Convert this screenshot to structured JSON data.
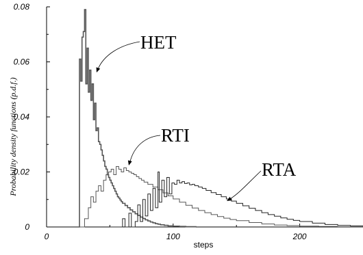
{
  "chart_data": {
    "type": "line",
    "title": "",
    "xlabel": "steps",
    "ylabel": "Probability density functions (p.d.f.)",
    "xlim": [
      0,
      250
    ],
    "ylim": [
      0,
      0.08
    ],
    "x_ticks": [
      0,
      100,
      200
    ],
    "y_ticks": [
      0,
      0.02,
      0.04,
      0.06,
      0.08
    ],
    "x_tick_labels": [
      "0",
      "100",
      "200"
    ],
    "y_tick_labels": [
      "0",
      "0.02",
      "0.04",
      "0.06",
      "0.08"
    ],
    "grid": false,
    "legend": "none",
    "series": [
      {
        "name": "HET",
        "style": "step",
        "color": "#555555",
        "stroke_width": 1.6,
        "points": [
          [
            22,
            0
          ],
          [
            26,
            0
          ],
          [
            26,
            0.061
          ],
          [
            27,
            0.053
          ],
          [
            28,
            0.069
          ],
          [
            29,
            0.071
          ],
          [
            30,
            0.079
          ],
          [
            31,
            0.052
          ],
          [
            32,
            0.065
          ],
          [
            33,
            0.049
          ],
          [
            34,
            0.057
          ],
          [
            35,
            0.046
          ],
          [
            36,
            0.052
          ],
          [
            37,
            0.039
          ],
          [
            38,
            0.045
          ],
          [
            39,
            0.035
          ],
          [
            40,
            0.036
          ],
          [
            41,
            0.031
          ],
          [
            42,
            0.03
          ],
          [
            43,
            0.028
          ],
          [
            44,
            0.026
          ],
          [
            45,
            0.024
          ],
          [
            46,
            0.022
          ],
          [
            47,
            0.021
          ],
          [
            48,
            0.019
          ],
          [
            49,
            0.018
          ],
          [
            50,
            0.017
          ],
          [
            51,
            0.016
          ],
          [
            52,
            0.015
          ],
          [
            53,
            0.014
          ],
          [
            54,
            0.013
          ],
          [
            55,
            0.012
          ],
          [
            56,
            0.011
          ],
          [
            57,
            0.0105
          ],
          [
            58,
            0.0098
          ],
          [
            59,
            0.0092
          ],
          [
            60,
            0.0086
          ],
          [
            62,
            0.0078
          ],
          [
            64,
            0.007
          ],
          [
            66,
            0.0062
          ],
          [
            68,
            0.0055
          ],
          [
            70,
            0.0048
          ],
          [
            72,
            0.0042
          ],
          [
            74,
            0.0036
          ],
          [
            76,
            0.0031
          ],
          [
            78,
            0.0026
          ],
          [
            80,
            0.0022
          ],
          [
            82,
            0.0018
          ],
          [
            84,
            0.0015
          ],
          [
            86,
            0.0012
          ],
          [
            88,
            0.001
          ],
          [
            90,
            0.0008
          ],
          [
            93,
            0.0006
          ],
          [
            96,
            0.0004
          ],
          [
            100,
            0.0003
          ],
          [
            105,
            0.0002
          ],
          [
            110,
            0.0001
          ],
          [
            118,
            0
          ]
        ]
      },
      {
        "name": "RTI",
        "style": "step",
        "color": "#555555",
        "stroke_width": 1.0,
        "points": [
          [
            25,
            0
          ],
          [
            30,
            0
          ],
          [
            30,
            0.003
          ],
          [
            33,
            0.007
          ],
          [
            35,
            0.011
          ],
          [
            37,
            0.009
          ],
          [
            39,
            0.013
          ],
          [
            41,
            0.015
          ],
          [
            43,
            0.013
          ],
          [
            45,
            0.017
          ],
          [
            47,
            0.019
          ],
          [
            49,
            0.02
          ],
          [
            51,
            0.021
          ],
          [
            53,
            0.019
          ],
          [
            55,
            0.022
          ],
          [
            57,
            0.021
          ],
          [
            59,
            0.02
          ],
          [
            61,
            0.0215
          ],
          [
            63,
            0.0205
          ],
          [
            65,
            0.02
          ],
          [
            67,
            0.0195
          ],
          [
            69,
            0.019
          ],
          [
            71,
            0.0183
          ],
          [
            73,
            0.0176
          ],
          [
            75,
            0.017
          ],
          [
            77,
            0.0163
          ],
          [
            80,
            0.0155
          ],
          [
            84,
            0.0145
          ],
          [
            88,
            0.0135
          ],
          [
            92,
            0.0124
          ],
          [
            96,
            0.0113
          ],
          [
            100,
            0.0102
          ],
          [
            105,
            0.009
          ],
          [
            110,
            0.0079
          ],
          [
            115,
            0.0069
          ],
          [
            120,
            0.006
          ],
          [
            125,
            0.0052
          ],
          [
            130,
            0.0045
          ],
          [
            135,
            0.0038
          ],
          [
            140,
            0.0032
          ],
          [
            145,
            0.0027
          ],
          [
            150,
            0.0023
          ],
          [
            160,
            0.0016
          ],
          [
            170,
            0.0011
          ],
          [
            180,
            0.0007
          ],
          [
            190,
            0.0005
          ],
          [
            200,
            0.0003
          ],
          [
            215,
            0.0002
          ],
          [
            230,
            0.0001
          ],
          [
            250,
            5e-05
          ]
        ]
      },
      {
        "name": "RTA",
        "style": "step",
        "color": "#222222",
        "stroke_width": 1.0,
        "points": [
          [
            50,
            0
          ],
          [
            60,
            0
          ],
          [
            60,
            0.003
          ],
          [
            62,
            0
          ],
          [
            65,
            0
          ],
          [
            65,
            0.005
          ],
          [
            67,
            0
          ],
          [
            70,
            0.002
          ],
          [
            72,
            0.008
          ],
          [
            74,
            0.002
          ],
          [
            76,
            0.01
          ],
          [
            78,
            0.004
          ],
          [
            80,
            0.012
          ],
          [
            82,
            0.006
          ],
          [
            84,
            0.014
          ],
          [
            86,
            0.007
          ],
          [
            88,
            0.02
          ],
          [
            89,
            0.009
          ],
          [
            91,
            0.017
          ],
          [
            93,
            0.011
          ],
          [
            95,
            0.018
          ],
          [
            97,
            0.012
          ],
          [
            99,
            0.016
          ],
          [
            101,
            0.0155
          ],
          [
            103,
            0.017
          ],
          [
            105,
            0.016
          ],
          [
            107,
            0.0165
          ],
          [
            109,
            0.0158
          ],
          [
            111,
            0.016
          ],
          [
            113,
            0.0153
          ],
          [
            115,
            0.0155
          ],
          [
            117,
            0.015
          ],
          [
            120,
            0.0145
          ],
          [
            123,
            0.014
          ],
          [
            126,
            0.0133
          ],
          [
            130,
            0.0125
          ],
          [
            134,
            0.0118
          ],
          [
            138,
            0.011
          ],
          [
            142,
            0.0102
          ],
          [
            146,
            0.0094
          ],
          [
            150,
            0.0086
          ],
          [
            155,
            0.0077
          ],
          [
            160,
            0.0068
          ],
          [
            165,
            0.006
          ],
          [
            170,
            0.0052
          ],
          [
            175,
            0.0045
          ],
          [
            180,
            0.0039
          ],
          [
            185,
            0.0033
          ],
          [
            190,
            0.0028
          ],
          [
            195,
            0.0024
          ],
          [
            200,
            0.002
          ],
          [
            210,
            0.0014
          ],
          [
            220,
            0.0009
          ],
          [
            230,
            0.0006
          ],
          [
            240,
            0.0004
          ],
          [
            250,
            0.0002
          ]
        ]
      }
    ],
    "annotations": [
      {
        "text": "HET",
        "series": "HET"
      },
      {
        "text": "RTI",
        "series": "RTI"
      },
      {
        "text": "RTA",
        "series": "RTA"
      }
    ]
  }
}
